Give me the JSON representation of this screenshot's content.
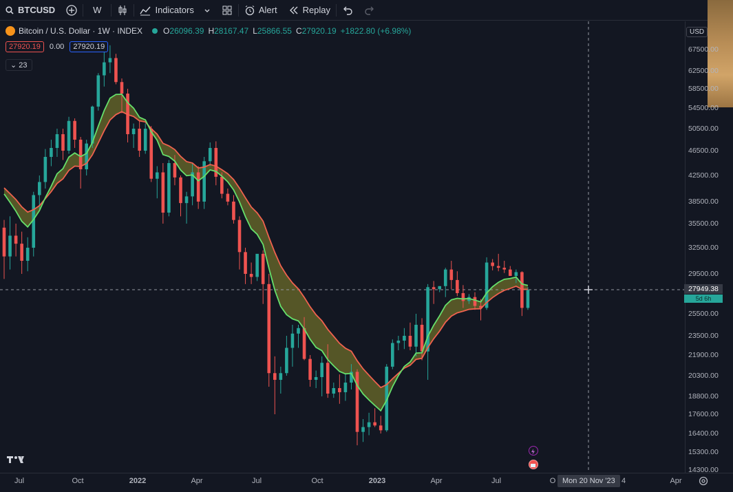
{
  "toolbar": {
    "symbol": "BTCUSD",
    "interval": "W",
    "indicators_label": "Indicators",
    "alert_label": "Alert",
    "replay_label": "Replay"
  },
  "legend": {
    "title": "Bitcoin / U.S. Dollar · 1W · INDEX",
    "o_label": "O",
    "o_value": "26096.39",
    "h_label": "H",
    "h_value": "28167.47",
    "l_label": "L",
    "l_value": "25866.55",
    "c_label": "C",
    "c_value": "27920.19",
    "change": "+1822.80 (+6.98%)"
  },
  "indicator_row": {
    "sell": "27920.19",
    "spread": "0.00",
    "buy": "27920.19"
  },
  "collapse_count": "23",
  "price_scale": {
    "currency": "USD",
    "ticks": [
      "67500.00",
      "62500.00",
      "58500.00",
      "54500.00",
      "50500.00",
      "46500.00",
      "42500.00",
      "38500.00",
      "35500.00",
      "32500.00",
      "29500.00",
      "25500.00",
      "23500.00",
      "21900.00",
      "20300.00",
      "18800.00",
      "17600.00",
      "16400.00",
      "15300.00",
      "14300.00"
    ],
    "current_price": "27949.38",
    "countdown": "5d 6h"
  },
  "time_axis": {
    "ticks": [
      "Jul",
      "Oct",
      "2022",
      "Apr",
      "Jul",
      "Oct",
      "2023",
      "Apr",
      "Jul",
      "O",
      "4",
      "Apr"
    ],
    "crosshair_date": "Mon 20 Nov '23"
  },
  "colors": {
    "up": "#26a69a",
    "down": "#ef5350",
    "fast_ma": "#66e06b",
    "slow_ma": "#f0624f",
    "ribbon": "#8c8a2c"
  },
  "chart_data": {
    "type": "candlestick",
    "title": "Bitcoin / U.S. Dollar · 1W · INDEX",
    "ohlc_weekly_approx": [
      [
        35000,
        36000,
        29000,
        31500
      ],
      [
        31500,
        36500,
        30000,
        34000
      ],
      [
        34000,
        35500,
        31500,
        33000
      ],
      [
        33000,
        34500,
        29500,
        31000
      ],
      [
        31000,
        33800,
        29800,
        32500
      ],
      [
        32500,
        40000,
        31500,
        39500
      ],
      [
        39500,
        42500,
        37500,
        41500
      ],
      [
        41500,
        46800,
        40500,
        45500
      ],
      [
        45500,
        48500,
        44000,
        47000
      ],
      [
        47000,
        50500,
        45500,
        49500
      ],
      [
        49500,
        50500,
        45000,
        46500
      ],
      [
        46500,
        52800,
        46000,
        52000
      ],
      [
        52000,
        52500,
        47000,
        48500
      ],
      [
        48500,
        49000,
        40500,
        43500
      ],
      [
        43500,
        48500,
        42500,
        47800
      ],
      [
        47800,
        55000,
        47000,
        54800
      ],
      [
        54800,
        62000,
        54000,
        61500
      ],
      [
        61500,
        67000,
        59000,
        64500
      ],
      [
        64500,
        68500,
        62000,
        65500
      ],
      [
        65500,
        66500,
        59500,
        60000
      ],
      [
        60000,
        60800,
        53500,
        57500
      ],
      [
        57500,
        58500,
        48000,
        49500
      ],
      [
        49500,
        51500,
        47000,
        50500
      ],
      [
        50500,
        52000,
        45500,
        46500
      ],
      [
        46500,
        51500,
        46000,
        50500
      ],
      [
        50500,
        51000,
        41500,
        42000
      ],
      [
        42000,
        44000,
        39000,
        43000
      ],
      [
        43000,
        44500,
        35500,
        37000
      ],
      [
        37000,
        45000,
        36500,
        44500
      ],
      [
        44500,
        45800,
        41000,
        42200
      ],
      [
        42200,
        42500,
        36500,
        38300
      ],
      [
        38300,
        40000,
        35500,
        39300
      ],
      [
        39300,
        44500,
        38000,
        43000
      ],
      [
        43000,
        44000,
        37500,
        38500
      ],
      [
        38500,
        45500,
        37500,
        44800
      ],
      [
        44800,
        48000,
        44000,
        47000
      ],
      [
        47000,
        48200,
        41000,
        42300
      ],
      [
        42300,
        43000,
        39000,
        39700
      ],
      [
        39700,
        40500,
        38000,
        38500
      ],
      [
        38500,
        39500,
        35500,
        36000
      ],
      [
        36000,
        36500,
        30000,
        32000
      ],
      [
        32000,
        32500,
        28500,
        29500
      ],
      [
        29500,
        30800,
        28500,
        29200
      ],
      [
        29200,
        31500,
        28800,
        31800
      ],
      [
        31800,
        32200,
        26500,
        28500
      ],
      [
        28500,
        29500,
        19500,
        20500
      ],
      [
        20500,
        21800,
        17600,
        20000
      ],
      [
        20000,
        21000,
        19000,
        20500
      ],
      [
        20500,
        23500,
        20300,
        22500
      ],
      [
        22500,
        24500,
        21000,
        23700
      ],
      [
        23700,
        24500,
        22500,
        24200
      ],
      [
        24200,
        25200,
        21500,
        21600
      ],
      [
        21600,
        21900,
        19500,
        20000
      ],
      [
        20000,
        20700,
        19400,
        20200
      ],
      [
        20200,
        21800,
        18800,
        21300
      ],
      [
        21300,
        22800,
        18700,
        19000
      ],
      [
        19000,
        19800,
        18700,
        19400
      ],
      [
        19400,
        20400,
        18300,
        19100
      ],
      [
        19100,
        20500,
        18500,
        19800
      ],
      [
        19800,
        21200,
        19300,
        20600
      ],
      [
        20600,
        20800,
        15700,
        16500
      ],
      [
        16500,
        17300,
        15900,
        16800
      ],
      [
        16800,
        17700,
        16300,
        17100
      ],
      [
        17100,
        18000,
        16800,
        16900
      ],
      [
        16900,
        17500,
        16400,
        16600
      ],
      [
        16600,
        21200,
        16500,
        21000
      ],
      [
        21000,
        23200,
        20800,
        22900
      ],
      [
        22900,
        23500,
        22300,
        23100
      ],
      [
        23100,
        24200,
        22400,
        23500
      ],
      [
        23500,
        24700,
        22300,
        22600
      ],
      [
        22600,
        25500,
        21800,
        24500
      ],
      [
        24500,
        25100,
        21500,
        22200
      ],
      [
        22200,
        28500,
        20000,
        28200
      ],
      [
        28200,
        28800,
        26500,
        28000
      ],
      [
        28000,
        28300,
        27700,
        28300
      ],
      [
        28300,
        30200,
        27200,
        30000
      ],
      [
        30000,
        31000,
        28000,
        28900
      ],
      [
        28900,
        29800,
        27300,
        27600
      ],
      [
        27600,
        28400,
        26100,
        26800
      ],
      [
        26800,
        27500,
        26500,
        27200
      ],
      [
        27200,
        27700,
        25900,
        26300
      ],
      [
        26300,
        27000,
        24900,
        26100
      ],
      [
        26100,
        31400,
        25900,
        30800
      ],
      [
        30800,
        31200,
        29900,
        30400
      ],
      [
        30400,
        31800,
        29800,
        30200
      ],
      [
        30200,
        31000,
        29600,
        30000
      ],
      [
        30000,
        30400,
        29300,
        29300
      ],
      [
        29300,
        30000,
        28600,
        29700
      ],
      [
        29700,
        29800,
        25300,
        26100
      ],
      [
        26100,
        28200,
        25900,
        27920
      ]
    ],
    "fast_ma_label": "",
    "slow_ma_label": ""
  }
}
